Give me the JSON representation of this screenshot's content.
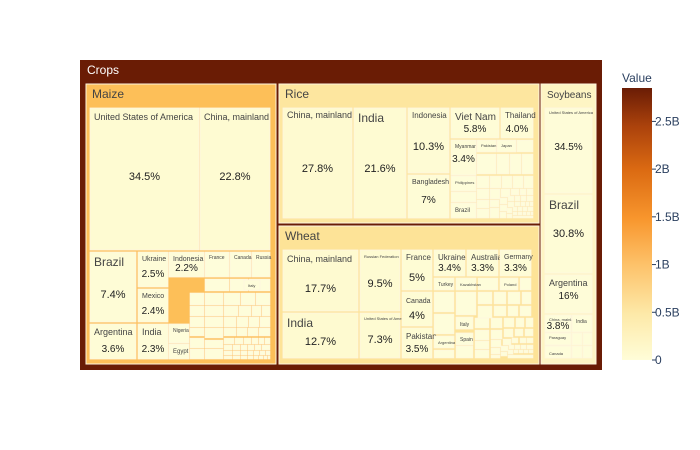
{
  "chart_data": {
    "type": "treemap",
    "root": {
      "name": "Crops"
    },
    "groups": [
      {
        "name": "Maize",
        "value_share": 0.36
      },
      {
        "name": "Rice",
        "value_share": 0.27
      },
      {
        "name": "Wheat",
        "value_share": 0.25
      },
      {
        "name": "Soybeans",
        "value_share": 0.12
      }
    ],
    "labeled_cells": [
      {
        "group": "Maize",
        "name": "United States of America",
        "percent": "34.5%"
      },
      {
        "group": "Maize",
        "name": "China, mainland",
        "percent": "22.8%"
      },
      {
        "group": "Maize",
        "name": "Brazil",
        "percent": "7.4%"
      },
      {
        "group": "Maize",
        "name": "Ukraine",
        "percent": "2.5%"
      },
      {
        "group": "Maize",
        "name": "Indonesia",
        "percent": "2.2%"
      },
      {
        "group": "Maize",
        "name": "France",
        "percent": ""
      },
      {
        "group": "Maize",
        "name": "Canada",
        "percent": ""
      },
      {
        "group": "Maize",
        "name": "Russia",
        "percent": ""
      },
      {
        "group": "Maize",
        "name": "Mexico",
        "percent": "2.4%"
      },
      {
        "group": "Maize",
        "name": "Argentina",
        "percent": "3.6%"
      },
      {
        "group": "Maize",
        "name": "India",
        "percent": "2.3%"
      },
      {
        "group": "Maize",
        "name": "Nigeria",
        "percent": ""
      },
      {
        "group": "Maize",
        "name": "Egypt",
        "percent": ""
      },
      {
        "group": "Maize",
        "name": "Italy",
        "percent": ""
      },
      {
        "group": "Rice",
        "name": "China, mainland",
        "percent": "27.8%"
      },
      {
        "group": "Rice",
        "name": "India",
        "percent": "21.6%"
      },
      {
        "group": "Rice",
        "name": "Indonesia",
        "percent": "10.3%"
      },
      {
        "group": "Rice",
        "name": "Viet Nam",
        "percent": "5.8%"
      },
      {
        "group": "Rice",
        "name": "Thailand",
        "percent": "4.0%"
      },
      {
        "group": "Rice",
        "name": "Myanmar",
        "percent": "3.4%"
      },
      {
        "group": "Rice",
        "name": "Pakistan",
        "percent": ""
      },
      {
        "group": "Rice",
        "name": "Japan",
        "percent": ""
      },
      {
        "group": "Rice",
        "name": "Bangladesh",
        "percent": "7%"
      },
      {
        "group": "Rice",
        "name": "Philippines",
        "percent": ""
      },
      {
        "group": "Rice",
        "name": "Brazil",
        "percent": ""
      },
      {
        "group": "Wheat",
        "name": "China, mainland",
        "percent": "17.7%"
      },
      {
        "group": "Wheat",
        "name": "Russian Federation",
        "percent": "9.5%"
      },
      {
        "group": "Wheat",
        "name": "France",
        "percent": "5%"
      },
      {
        "group": "Wheat",
        "name": "Ukraine",
        "percent": "3.4%"
      },
      {
        "group": "Wheat",
        "name": "Australia",
        "percent": "3.3%"
      },
      {
        "group": "Wheat",
        "name": "Germany",
        "percent": "3.3%"
      },
      {
        "group": "Wheat",
        "name": "India",
        "percent": "12.7%"
      },
      {
        "group": "Wheat",
        "name": "United States of America",
        "percent": "7.3%"
      },
      {
        "group": "Wheat",
        "name": "Canada",
        "percent": "4%"
      },
      {
        "group": "Wheat",
        "name": "Pakistan",
        "percent": "3.5%"
      },
      {
        "group": "Wheat",
        "name": "Turkey",
        "percent": ""
      },
      {
        "group": "Wheat",
        "name": "Kazakhstan",
        "percent": ""
      },
      {
        "group": "Wheat",
        "name": "Poland",
        "percent": ""
      },
      {
        "group": "Wheat",
        "name": "Italy",
        "percent": ""
      },
      {
        "group": "Wheat",
        "name": "Spain",
        "percent": ""
      },
      {
        "group": "Wheat",
        "name": "Argentina",
        "percent": ""
      },
      {
        "group": "Soybeans",
        "name": "United States of America",
        "percent": "34.5%"
      },
      {
        "group": "Soybeans",
        "name": "Brazil",
        "percent": "30.8%"
      },
      {
        "group": "Soybeans",
        "name": "Argentina",
        "percent": "16%"
      },
      {
        "group": "Soybeans",
        "name": "China, mainland",
        "percent": "3.8%"
      },
      {
        "group": "Soybeans",
        "name": "India",
        "percent": ""
      },
      {
        "group": "Soybeans",
        "name": "Paraguay",
        "percent": ""
      },
      {
        "group": "Soybeans",
        "name": "Canada",
        "percent": ""
      }
    ],
    "colorbar": {
      "title": "Value",
      "ticks": [
        "0",
        "0.5B",
        "1B",
        "1.5B",
        "2B",
        "2.5B"
      ],
      "tick_values": [
        0,
        0.5,
        1,
        1.5,
        2,
        2.5
      ],
      "range": [
        0,
        2.85
      ],
      "colorscale": [
        "#fffdd8",
        "#fde9a8",
        "#fdc26a",
        "#f8962d",
        "#db6a12",
        "#ab420c",
        "#6a1c05"
      ]
    },
    "colors": {
      "root": "#6a1c05",
      "border": "#fdf6e0",
      "leaf_light": "#fefbd2"
    }
  }
}
